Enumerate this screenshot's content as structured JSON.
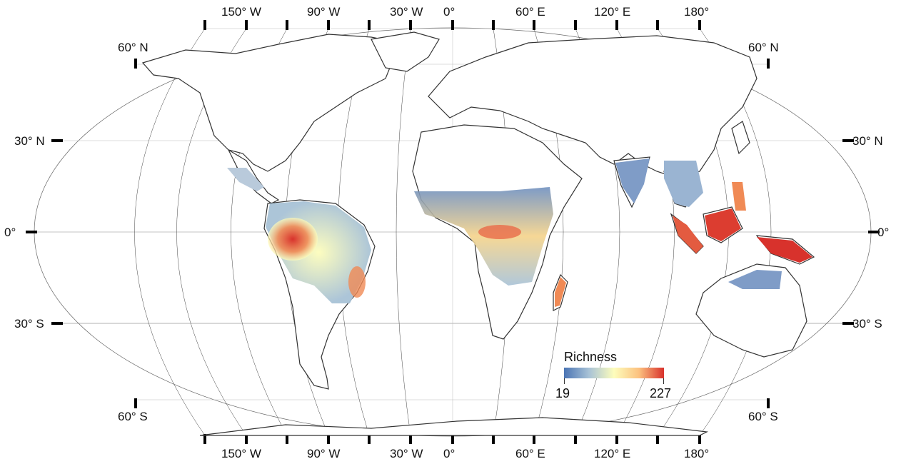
{
  "map": {
    "projection_labels": {
      "lon_top": [
        "150° W",
        "90° W",
        "30° W",
        "0°",
        "60° E",
        "120° E",
        "180°"
      ],
      "lon_bottom": [
        "150° W",
        "90° W",
        "30° W",
        "0°",
        "60° E",
        "120° E",
        "180°"
      ],
      "lat_left": [
        "60° N",
        "30° N",
        "0°",
        "30° S",
        "60° S"
      ],
      "lat_right": [
        "60° N",
        "30° N",
        "0°",
        "30° S",
        "60° S"
      ]
    },
    "legend": {
      "title": "Richness",
      "min": "19",
      "max": "227",
      "colors": [
        "#4a74b4",
        "#a8c2d6",
        "#fdfdbc",
        "#fcc17f",
        "#d8322c"
      ]
    },
    "colors": {
      "coast": "#333333",
      "graticule": "#888888",
      "low": "#4a74b4",
      "mid": "#fdfdbc",
      "high": "#d8322c"
    }
  }
}
